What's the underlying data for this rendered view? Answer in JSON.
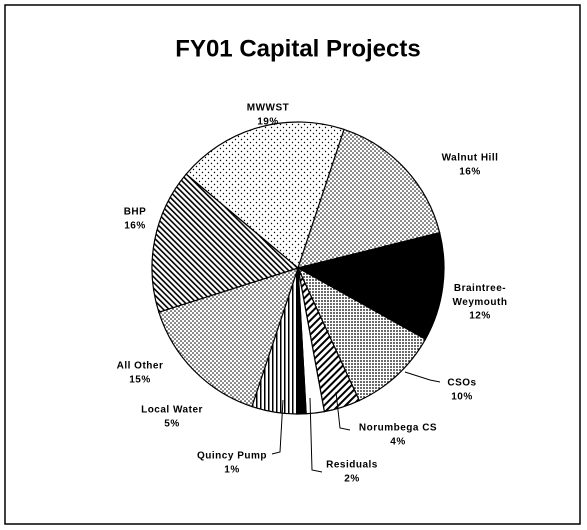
{
  "chart_data": {
    "type": "pie",
    "title": "FY01 Capital Projects",
    "categories": [
      "MWWST",
      "Walnut Hill",
      "Braintree-Weymouth",
      "CSOs",
      "Norumbega CS",
      "Residuals",
      "Quincy Pump",
      "Local Water",
      "All Other",
      "BHP"
    ],
    "values": [
      19,
      16,
      12,
      10,
      4,
      2,
      1,
      5,
      15,
      16
    ],
    "value_labels": [
      "19%",
      "16%",
      "12%",
      "10%",
      "4%",
      "2%",
      "1%",
      "5%",
      "15%",
      "16%"
    ]
  }
}
